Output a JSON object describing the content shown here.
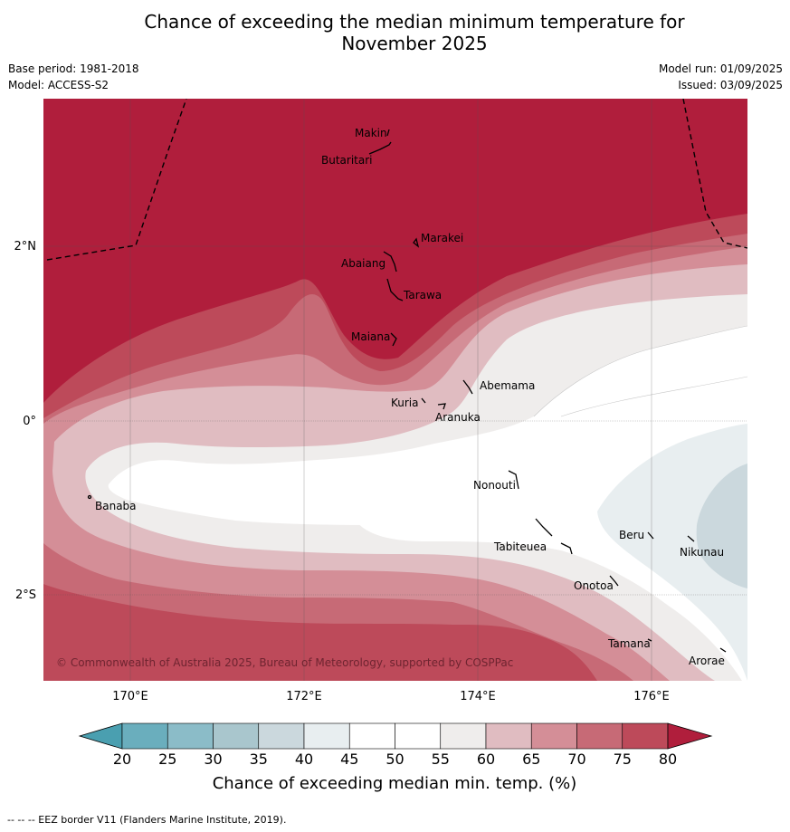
{
  "title_line1": "Chance of exceeding the median minimum temperature for",
  "title_line2": "November 2025",
  "base_period": "Base period: 1981-2018",
  "model": "Model: ACCESS-S2",
  "model_run": "Model run: 01/09/2025",
  "issued": "Issued: 03/09/2025",
  "copyright": "© Commonwealth of Australia 2025, Bureau of Meteorology, supported by COSPPac",
  "lon_labels": [
    "170°E",
    "172°E",
    "174°E",
    "176°E"
  ],
  "lat_labels": [
    "2°N",
    "0°",
    "2°S"
  ],
  "islands": [
    {
      "name": "Makin"
    },
    {
      "name": "Butaritari"
    },
    {
      "name": "Marakei"
    },
    {
      "name": "Abaiang"
    },
    {
      "name": "Tarawa"
    },
    {
      "name": "Maiana"
    },
    {
      "name": "Abemama"
    },
    {
      "name": "Kuria"
    },
    {
      "name": "Aranuka"
    },
    {
      "name": "Nonouti"
    },
    {
      "name": "Banaba"
    },
    {
      "name": "Tabiteuea"
    },
    {
      "name": "Beru"
    },
    {
      "name": "Nikunau"
    },
    {
      "name": "Onotoa"
    },
    {
      "name": "Tamana"
    },
    {
      "name": "Arorae"
    }
  ],
  "legend": {
    "ticks": [
      "20",
      "25",
      "30",
      "35",
      "40",
      "45",
      "50",
      "55",
      "60",
      "65",
      "70",
      "75",
      "80"
    ],
    "colors": [
      "#6aaebd",
      "#8bbcc8",
      "#a9c6cd",
      "#cbd8dd",
      "#e8eef0",
      "#ffffff",
      "#ffffff",
      "#efedec",
      "#e0bcc1",
      "#d48e97",
      "#c76a76",
      "#bd4a5a"
    ],
    "under_color": "#4a9fb0",
    "over_color": "#b01e3c",
    "label": "Chance of exceeding median min. temp. (%)"
  },
  "footer": "--  --  -- EEZ border V11 (Flanders Marine Institute, 2019)."
}
